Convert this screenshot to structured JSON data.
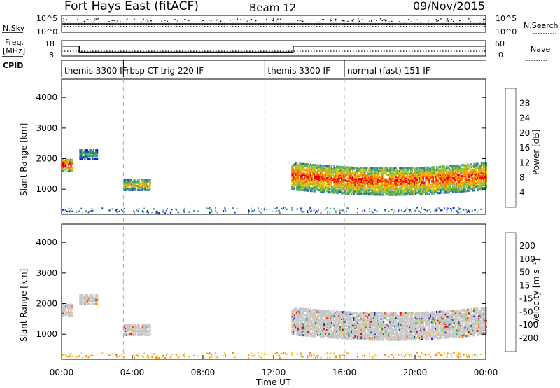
{
  "header": {
    "title": "Fort Hays East (fitACF)",
    "beam": "Beam 12",
    "date": "09/Nov/2015"
  },
  "chart_data": [
    {
      "type": "line",
      "panel": "noise",
      "left_label": "N.Sky",
      "right_label": "N.Search",
      "left_ticks": [
        "10^5",
        "10^0"
      ],
      "right_ticks": [
        "10^5",
        "10^0"
      ]
    },
    {
      "type": "line",
      "panel": "frequency-nave",
      "left_label_line1": "Freq.",
      "left_label_line2": "[MHz]",
      "right_label": "Nave",
      "left_ticks": [
        "18",
        "8"
      ],
      "right_ticks": [
        "60",
        "0"
      ],
      "freq_steps": [
        {
          "from_hour": 0.0,
          "to_hour": 1.0,
          "mhz": 14.5
        },
        {
          "from_hour": 1.0,
          "to_hour": 13.1,
          "mhz": 10.5
        },
        {
          "from_hour": 13.1,
          "to_hour": 24.0,
          "mhz": 14.5
        }
      ]
    },
    {
      "type": "table",
      "panel": "cpid",
      "label": "CPID",
      "segments": [
        {
          "start_hour": 0.0,
          "text": "themis 3300 IF"
        },
        {
          "start_hour": 3.5,
          "text": "rbsp CT-trig 220 IF"
        },
        {
          "start_hour": 11.5,
          "text": "themis 3300 IF"
        },
        {
          "start_hour": 16.0,
          "text": "normal (fast) 151 IF"
        }
      ]
    },
    {
      "type": "heatmap",
      "panel": "power",
      "ylabel": "Slant Range [km]",
      "ylim": [
        180,
        4600
      ],
      "yticks": [
        1000,
        2000,
        3000,
        4000
      ],
      "xlim_hours": [
        0,
        24
      ],
      "colorbar_label": "Power [dB]",
      "colorbar_ticks": [
        28,
        24,
        20,
        16,
        12,
        8,
        4
      ],
      "colorbar_colors": [
        "#0022dd",
        "#2255c0",
        "#3a8a8a",
        "#4fa860",
        "#8ac440",
        "#e6c000",
        "#ff9a00",
        "#ff5a00",
        "#e60000"
      ],
      "echo_regions": [
        {
          "from_hour": 0.0,
          "to_hour": 0.6,
          "center_km": 1800,
          "width_km": 400,
          "level": 0.7
        },
        {
          "from_hour": 1.0,
          "to_hour": 2.0,
          "center_km": 2150,
          "width_km": 300,
          "level": 0.25
        },
        {
          "from_hour": 3.5,
          "to_hour": 5.0,
          "center_km": 1150,
          "width_km": 350,
          "level": 0.45
        },
        {
          "from_hour": 13.0,
          "to_hour": 24.0,
          "center_km": 1450,
          "width_km": 900,
          "level": 0.6
        }
      ]
    },
    {
      "type": "heatmap",
      "panel": "velocity",
      "ylabel": "Slant Range [km]",
      "xlabel": "Time UT",
      "ylim": [
        180,
        4600
      ],
      "yticks": [
        1000,
        2000,
        3000,
        4000
      ],
      "xticks": [
        "00:00",
        "04:00",
        "08:00",
        "12:00",
        "16:00",
        "20:00",
        "00:00"
      ],
      "colorbar_label": "Velocity [m s⁻¹]",
      "colorbar_ticks": [
        200,
        100,
        50,
        15,
        -15,
        -50,
        -100,
        -200
      ],
      "colorbar_colors": [
        "#0022cc",
        "#2255aa",
        "#1f8a4a",
        "#6cc040",
        "#c8c8c8",
        "#f5c000",
        "#ff8000",
        "#ff4000",
        "#e60000"
      ]
    }
  ]
}
